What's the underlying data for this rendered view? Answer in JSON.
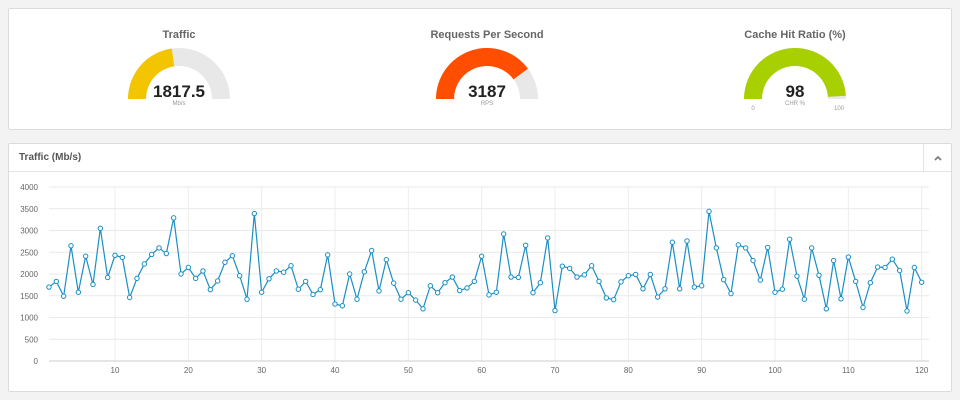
{
  "gauges": [
    {
      "title": "Traffic",
      "value_text": "1817.5",
      "unit": "Mb/s",
      "value": 1817.5,
      "max": 4000,
      "color": "#f2c500",
      "min_label": "",
      "max_label": ""
    },
    {
      "title": "Requests Per Second",
      "value_text": "3187",
      "unit": "RPS",
      "value": 3187,
      "max": 4000,
      "color": "#ff4e00",
      "min_label": "",
      "max_label": ""
    },
    {
      "title": "Cache Hit Ratio (%)",
      "value_text": "98",
      "unit": "CHR %",
      "value": 98,
      "max": 100,
      "color": "#a8d000",
      "min_label": "0",
      "max_label": "100"
    }
  ],
  "chart_panel": {
    "title": "Traffic (Mb/s)"
  },
  "chart_data": {
    "type": "line",
    "title": "Traffic (Mb/s)",
    "xlabel": "",
    "ylabel": "",
    "xlim": [
      1,
      121
    ],
    "ylim": [
      0,
      4000
    ],
    "yticks": [
      0,
      500,
      1000,
      1500,
      2000,
      2500,
      3000,
      3500,
      4000
    ],
    "xticks": [
      10,
      20,
      30,
      40,
      50,
      60,
      70,
      80,
      90,
      100,
      110,
      120
    ],
    "grid": true,
    "series": [
      {
        "name": "",
        "color": "#1a8fc4",
        "values": [
          1700,
          1830,
          1490,
          2650,
          1580,
          2410,
          1760,
          3050,
          1920,
          2430,
          2380,
          1460,
          1900,
          2230,
          2450,
          2600,
          2470,
          3290,
          2000,
          2150,
          1900,
          2070,
          1640,
          1840,
          2270,
          2420,
          1960,
          1420,
          3390,
          1580,
          1890,
          2070,
          2040,
          2190,
          1650,
          1830,
          1530,
          1640,
          2440,
          1310,
          1270,
          2000,
          1420,
          2050,
          2540,
          1610,
          2330,
          1790,
          1420,
          1570,
          1400,
          1200,
          1730,
          1570,
          1800,
          1930,
          1620,
          1680,
          1830,
          2410,
          1520,
          1580,
          2920,
          1930,
          1920,
          2660,
          1570,
          1800,
          2830,
          1160,
          2180,
          2130,
          1930,
          1980,
          2190,
          1830,
          1450,
          1410,
          1820,
          1960,
          1990,
          1660,
          1990,
          1470,
          1660,
          2730,
          1660,
          2760,
          1700,
          1730,
          3440,
          2600,
          1870,
          1550,
          2670,
          2600,
          2310,
          1860,
          2610,
          1580,
          1650,
          2800,
          1950,
          1420,
          2600,
          1970,
          1200,
          2310,
          1430,
          2390,
          1830,
          1230,
          1800,
          2160,
          2150,
          2340,
          2080,
          1150,
          2150,
          1810
        ]
      }
    ]
  }
}
